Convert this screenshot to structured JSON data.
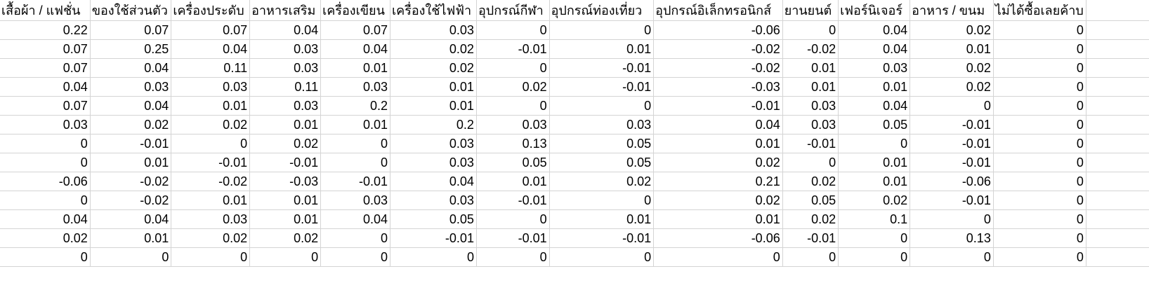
{
  "headers": [
    "เสื้อผ้า / แฟชั่น",
    "ของใช้ส่วนตัว",
    "เครื่องประดับ",
    "อาหารเสริม",
    "เครื่องเขียน",
    "เครื่องใช้ไฟฟ้า",
    "อุปกรณ์กีฬา",
    "อุปกรณ์ท่องเที่ยว",
    "อุปกรณ์อิเล็กทรอนิกส์",
    "ยานยนต์",
    "เฟอร์นิเจอร์",
    "อาหาร / ขนม",
    "ไม่ได้ซื้อเลยค้าบ",
    ""
  ],
  "rows": [
    [
      "0.22",
      "0.07",
      "0.07",
      "0.04",
      "0.07",
      "0.03",
      "0",
      "0",
      "-0.06",
      "0",
      "0.04",
      "0.02",
      "0",
      ""
    ],
    [
      "0.07",
      "0.25",
      "0.04",
      "0.03",
      "0.04",
      "0.02",
      "-0.01",
      "0.01",
      "-0.02",
      "-0.02",
      "0.04",
      "0.01",
      "0",
      ""
    ],
    [
      "0.07",
      "0.04",
      "0.11",
      "0.03",
      "0.01",
      "0.02",
      "0",
      "-0.01",
      "-0.02",
      "0.01",
      "0.03",
      "0.02",
      "0",
      ""
    ],
    [
      "0.04",
      "0.03",
      "0.03",
      "0.11",
      "0.03",
      "0.01",
      "0.02",
      "-0.01",
      "-0.03",
      "0.01",
      "0.01",
      "0.02",
      "0",
      ""
    ],
    [
      "0.07",
      "0.04",
      "0.01",
      "0.03",
      "0.2",
      "0.01",
      "0",
      "0",
      "-0.01",
      "0.03",
      "0.04",
      "0",
      "0",
      ""
    ],
    [
      "0.03",
      "0.02",
      "0.02",
      "0.01",
      "0.01",
      "0.2",
      "0.03",
      "0.03",
      "0.04",
      "0.03",
      "0.05",
      "-0.01",
      "0",
      ""
    ],
    [
      "0",
      "-0.01",
      "0",
      "0.02",
      "0",
      "0.03",
      "0.13",
      "0.05",
      "0.01",
      "-0.01",
      "0",
      "-0.01",
      "0",
      ""
    ],
    [
      "0",
      "0.01",
      "-0.01",
      "-0.01",
      "0",
      "0.03",
      "0.05",
      "0.05",
      "0.02",
      "0",
      "0.01",
      "-0.01",
      "0",
      ""
    ],
    [
      "-0.06",
      "-0.02",
      "-0.02",
      "-0.03",
      "-0.01",
      "0.04",
      "0.01",
      "0.02",
      "0.21",
      "0.02",
      "0.01",
      "-0.06",
      "0",
      ""
    ],
    [
      "0",
      "-0.02",
      "0.01",
      "0.01",
      "0.03",
      "0.03",
      "-0.01",
      "0",
      "0.02",
      "0.05",
      "0.02",
      "-0.01",
      "0",
      ""
    ],
    [
      "0.04",
      "0.04",
      "0.03",
      "0.01",
      "0.04",
      "0.05",
      "0",
      "0.01",
      "0.01",
      "0.02",
      "0.1",
      "0",
      "0",
      ""
    ],
    [
      "0.02",
      "0.01",
      "0.02",
      "0.02",
      "0",
      "-0.01",
      "-0.01",
      "-0.01",
      "-0.06",
      "-0.01",
      "0",
      "0.13",
      "0",
      ""
    ],
    [
      "0",
      "0",
      "0",
      "0",
      "0",
      "0",
      "0",
      "0",
      "0",
      "0",
      "0",
      "0",
      "0",
      ""
    ]
  ]
}
